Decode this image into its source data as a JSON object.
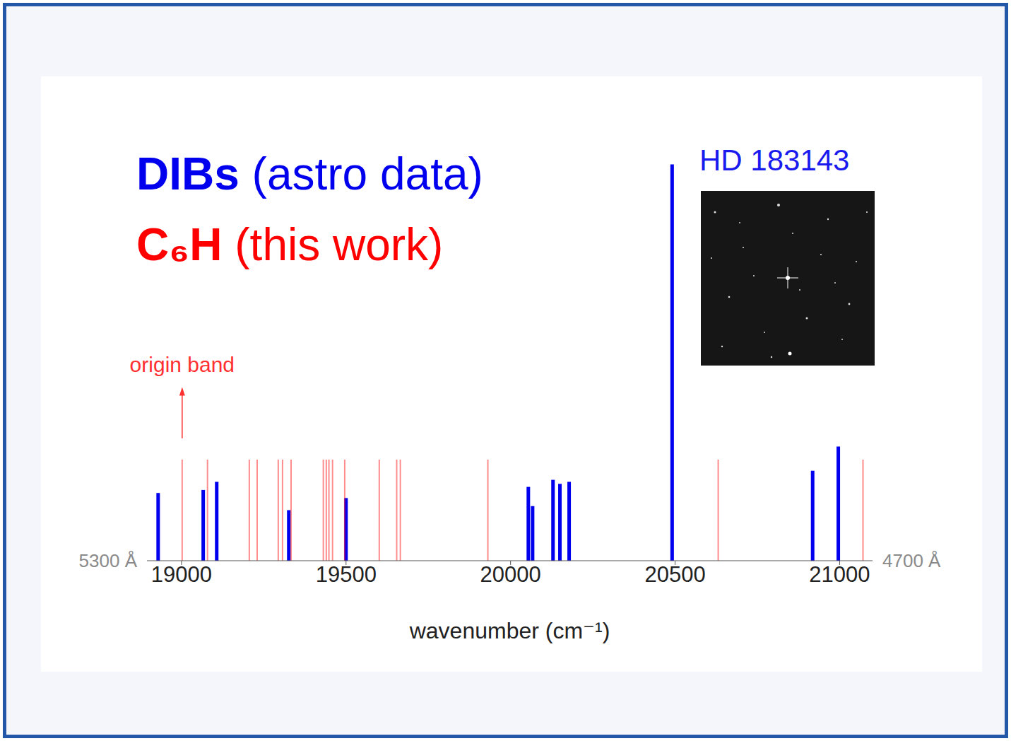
{
  "chart_data": {
    "type": "stick",
    "xlabel": "wavenumber (cm⁻¹)",
    "xlim": [
      18895,
      21100
    ],
    "xticks": [
      19000,
      19500,
      20000,
      20500,
      21000
    ],
    "ylim": [
      0,
      4
    ],
    "tick_labels": "x",
    "legend": "upper left",
    "series": [
      {
        "name": "DIBs (astro data)",
        "color": "#0000ee",
        "x": [
          18929,
          19066,
          19107,
          19326,
          19500,
          20054,
          20067,
          20129,
          20150,
          20178,
          20491,
          20918,
          20996
        ],
        "values": [
          0.67,
          0.7,
          0.78,
          0.5,
          0.62,
          0.73,
          0.54,
          0.8,
          0.76,
          0.78,
          3.92,
          0.89,
          1.13
        ]
      },
      {
        "name": "C₆H (this work)",
        "color": "#ff0000",
        "x": [
          19002,
          19079,
          19206,
          19230,
          19294,
          19307,
          19333,
          19431,
          19440,
          19448,
          19459,
          19496,
          19601,
          19654,
          19665,
          19931,
          20631,
          21071
        ],
        "values": [
          1,
          1,
          1,
          1,
          1,
          1,
          1,
          1,
          1,
          1,
          1,
          1,
          1,
          1,
          1,
          1,
          1,
          1
        ]
      }
    ],
    "annotations": [
      {
        "text": "origin band",
        "x": 19002,
        "y": 1.66,
        "color": "#ff3030"
      },
      {
        "text": "HD 183143",
        "color": "#1a1aee"
      },
      {
        "text": "5300 Å",
        "x": 18895,
        "y": 0,
        "color": "#8a8a8a"
      },
      {
        "text": "4700 Å",
        "x": 21100,
        "y": 0,
        "color": "#8a8a8a"
      }
    ]
  }
}
